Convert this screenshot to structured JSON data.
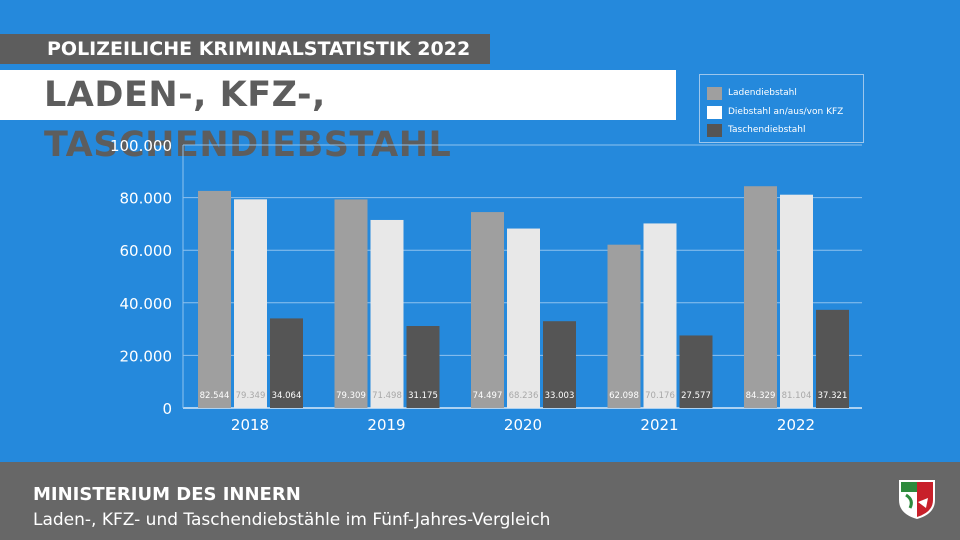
{
  "header": {
    "subtitle": "POLIZEILICHE KRIMINALSTATISTIK 2022",
    "title": "LADEN-, KFZ-, TASCHENDIEBSTAHL"
  },
  "footer": {
    "organization": "MINISTERIUM DES INNERN",
    "description": "Laden-, KFZ- und Taschendiebstähle im Fünf-Jahres-Vergleich"
  },
  "colors": {
    "background": "#2589dc",
    "ladendiebstahl": "#9f9f9f",
    "kfz": "#e8e8e8",
    "taschendiebstahl": "#555555"
  },
  "chart_data": {
    "type": "bar",
    "title": "LADEN-, KFZ-, TASCHENDIEBSTAHL",
    "xlabel": "",
    "ylabel": "",
    "categories": [
      "2018",
      "2019",
      "2020",
      "2021",
      "2022"
    ],
    "series": [
      {
        "name": "Ladendiebstahl",
        "values": [
          82544,
          79309,
          74497,
          62098,
          84329
        ],
        "labels": [
          "82.544",
          "79.309",
          "74.497",
          "62.098",
          "84.329"
        ]
      },
      {
        "name": "Diebstahl an/aus/von KFZ",
        "values": [
          79349,
          71498,
          68236,
          70176,
          81104
        ],
        "labels": [
          "79.349",
          "71.498",
          "68.236",
          "70.176",
          "81.104"
        ]
      },
      {
        "name": "Taschendiebstahl",
        "values": [
          34064,
          31175,
          33003,
          27577,
          37321
        ],
        "labels": [
          "34.064",
          "31.175",
          "33.003",
          "27.577",
          "37.321"
        ]
      }
    ],
    "ylim": [
      0,
      100000
    ],
    "yticks": [
      0,
      20000,
      40000,
      60000,
      80000,
      100000
    ],
    "ytick_labels": [
      "0",
      "20.000",
      "40.000",
      "60.000",
      "80.000",
      "100.000"
    ],
    "grid": true,
    "legend_position": "top-right"
  }
}
